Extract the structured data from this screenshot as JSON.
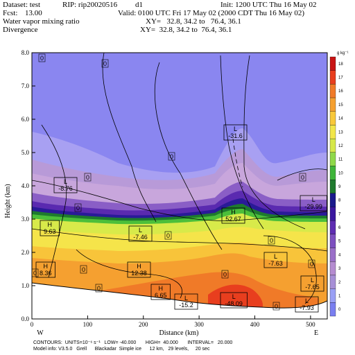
{
  "header": {
    "dataset_label": "Dataset: test",
    "rip_label": "RIP: rip20020516",
    "domain_label": "d1",
    "init_text": "Init: 1200 UTC Thu 16 May 02",
    "fcst_label": "Fcst:",
    "fcst_value": "13.00",
    "valid_text": "Valid: 0100 UTC Fri 17 May 02 (2000 CDT Thu 16 May 02)",
    "field1": "Water vapor mixing ratio",
    "field1_xy": "XY=   32.8, 34.2 to   76.4, 36.1",
    "field2": "Divergence",
    "field2_xy": "XY=  32.8, 34.2 to  76.4, 36.1"
  },
  "axes": {
    "ylabel": "Height (km)",
    "xlabel": "Distance (km)",
    "y_ticks": [
      "0.0",
      "1.0",
      "2.0",
      "3.0",
      "4.0",
      "5.0",
      "6.0",
      "7.0",
      "8.0"
    ],
    "x_ticks": [
      "0",
      "100",
      "200",
      "300",
      "400",
      "500"
    ],
    "left_end": "W",
    "right_end": "E"
  },
  "colorbar": {
    "units": "g kg⁻¹",
    "labels": [
      "0",
      "1",
      "2",
      "3",
      "4",
      "5",
      "6",
      "7",
      "8",
      "9",
      "10",
      "11",
      "12",
      "13",
      "14",
      "15",
      "16",
      "17",
      "18"
    ],
    "colors": [
      "#7a7ff0",
      "#9aa0f5",
      "#a78fd6",
      "#b58cd0",
      "#9a6fc8",
      "#7d4fbf",
      "#5f2db2",
      "#3b17a0",
      "#1a1a8c",
      "#1f7a2e",
      "#3fb53a",
      "#8fd84a",
      "#d6e84a",
      "#f2e64a",
      "#f8c83a",
      "#f5a030",
      "#f07a28",
      "#e83e1e",
      "#c81414"
    ]
  },
  "markers": [
    {
      "kind": "L",
      "value": "-8.76"
    },
    {
      "kind": "L",
      "value": "-31.6"
    },
    {
      "kind": "L",
      "value": "-29.99"
    },
    {
      "kind": "H",
      "value": "52.67"
    },
    {
      "kind": "H",
      "value": "9.63"
    },
    {
      "kind": "L",
      "value": "-7.46"
    },
    {
      "kind": "L",
      "value": "-7.63"
    },
    {
      "kind": "H",
      "value": "8.36"
    },
    {
      "kind": "H",
      "value": "12.38"
    },
    {
      "kind": "H",
      "value": "6.65"
    },
    {
      "kind": "L",
      "value": "-15.2"
    },
    {
      "kind": "L",
      "value": "-48.09"
    },
    {
      "kind": "L",
      "value": "-7.65"
    },
    {
      "kind": "L",
      "value": "-7.93"
    }
  ],
  "zero_labels": [
    "0",
    "0",
    "0",
    "0",
    "0",
    "0",
    "0",
    "0",
    "0",
    "0",
    "0",
    "0",
    "0",
    "0"
  ],
  "footer": {
    "contours": "CONTOURS:  UNITS=10⁻⁶ s⁻¹   LOW= -40.000       HIGH=  40.000       INTERVAL=   20.000",
    "model": "Model info: V3.5.0   Grell      Blackadar  Simple ice      12 km,   29 levels,     20 sec"
  }
}
